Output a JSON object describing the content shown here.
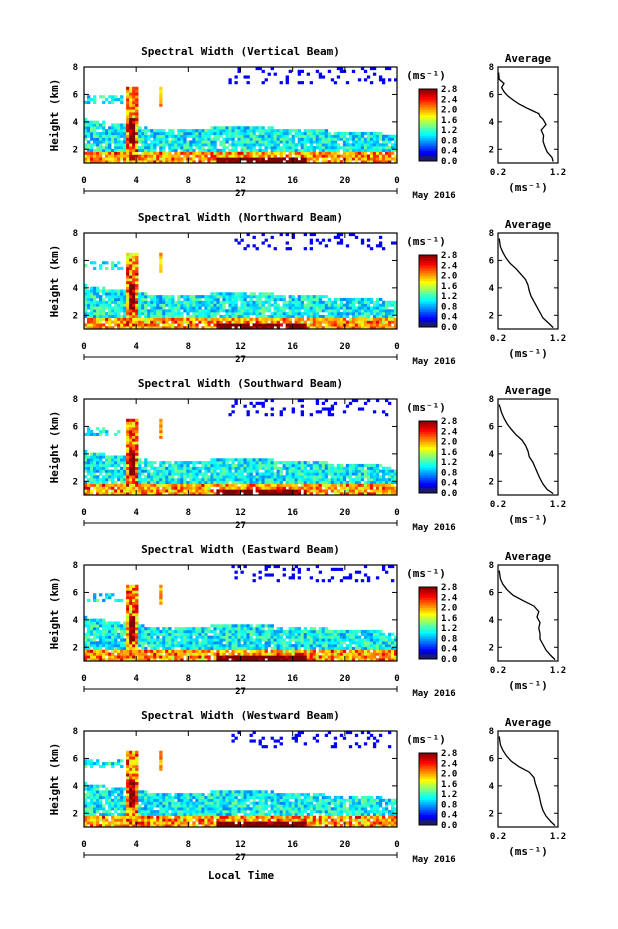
{
  "chart_data": {
    "type": "heatmap",
    "x_label": "Local Time",
    "date_label": "May 2016",
    "day_label": "27",
    "xticks": [
      "0",
      "4",
      "8",
      "12",
      "16",
      "20",
      "0"
    ],
    "y_label": "Height (km)",
    "yticks": [
      "2",
      "4",
      "6",
      "8"
    ],
    "ylim": [
      1,
      8
    ],
    "colorbar": {
      "unit": "(ms⁻¹)",
      "ticks": [
        "0.0",
        "0.4",
        "0.8",
        "1.2",
        "1.6",
        "2.0",
        "2.4",
        "2.8"
      ],
      "range": [
        0,
        2.8
      ]
    },
    "avg_title": "Average",
    "avg_unit": "(ms⁻¹)",
    "avg_xticks": [
      "0.2",
      "1.2"
    ],
    "avg_xlim": [
      0.2,
      1.2
    ],
    "panels": [
      {
        "title": "Spectral Width (Vertical Beam)",
        "avg_profile": [
          [
            1.12,
            1.1
          ],
          [
            1.1,
            1.4
          ],
          [
            1.02,
            1.8
          ],
          [
            0.98,
            2.2
          ],
          [
            0.95,
            2.6
          ],
          [
            0.96,
            3.0
          ],
          [
            0.92,
            3.4
          ],
          [
            1.0,
            3.8
          ],
          [
            0.95,
            4.2
          ],
          [
            0.9,
            4.4
          ],
          [
            0.88,
            4.6
          ],
          [
            0.78,
            4.8
          ],
          [
            0.68,
            5.0
          ],
          [
            0.55,
            5.3
          ],
          [
            0.45,
            5.6
          ],
          [
            0.36,
            5.9
          ],
          [
            0.3,
            6.2
          ],
          [
            0.26,
            6.5
          ],
          [
            0.3,
            6.8
          ],
          [
            0.22,
            7.1
          ],
          [
            0.21,
            7.6
          ]
        ]
      },
      {
        "title": "Spectral Width (Northward Beam)",
        "avg_profile": [
          [
            1.12,
            1.1
          ],
          [
            1.05,
            1.4
          ],
          [
            0.95,
            1.8
          ],
          [
            0.9,
            2.2
          ],
          [
            0.85,
            2.6
          ],
          [
            0.8,
            3.0
          ],
          [
            0.75,
            3.4
          ],
          [
            0.72,
            3.8
          ],
          [
            0.7,
            4.2
          ],
          [
            0.66,
            4.6
          ],
          [
            0.58,
            5.0
          ],
          [
            0.5,
            5.4
          ],
          [
            0.4,
            5.8
          ],
          [
            0.33,
            6.2
          ],
          [
            0.28,
            6.6
          ],
          [
            0.24,
            7.0
          ],
          [
            0.22,
            7.6
          ]
        ]
      },
      {
        "title": "Spectral Width (Southward Beam)",
        "avg_profile": [
          [
            1.12,
            1.1
          ],
          [
            1.02,
            1.4
          ],
          [
            0.95,
            1.8
          ],
          [
            0.9,
            2.2
          ],
          [
            0.86,
            2.6
          ],
          [
            0.82,
            3.0
          ],
          [
            0.78,
            3.4
          ],
          [
            0.72,
            3.8
          ],
          [
            0.7,
            4.2
          ],
          [
            0.66,
            4.6
          ],
          [
            0.6,
            5.0
          ],
          [
            0.5,
            5.4
          ],
          [
            0.42,
            5.8
          ],
          [
            0.35,
            6.2
          ],
          [
            0.3,
            6.6
          ],
          [
            0.26,
            7.0
          ],
          [
            0.22,
            7.6
          ]
        ]
      },
      {
        "title": "Spectral Width (Eastward Beam)",
        "avg_profile": [
          [
            1.15,
            1.1
          ],
          [
            1.08,
            1.4
          ],
          [
            1.0,
            1.8
          ],
          [
            0.95,
            2.2
          ],
          [
            0.9,
            2.6
          ],
          [
            0.9,
            3.0
          ],
          [
            0.88,
            3.4
          ],
          [
            0.9,
            3.8
          ],
          [
            0.85,
            4.2
          ],
          [
            0.88,
            4.6
          ],
          [
            0.8,
            5.0
          ],
          [
            0.62,
            5.4
          ],
          [
            0.45,
            5.8
          ],
          [
            0.35,
            6.2
          ],
          [
            0.28,
            6.6
          ],
          [
            0.24,
            7.0
          ],
          [
            0.22,
            7.6
          ]
        ]
      },
      {
        "title": "Spectral Width (Westward Beam)",
        "avg_profile": [
          [
            1.15,
            1.1
          ],
          [
            1.08,
            1.4
          ],
          [
            1.0,
            1.8
          ],
          [
            0.95,
            2.2
          ],
          [
            0.92,
            2.6
          ],
          [
            0.9,
            3.0
          ],
          [
            0.88,
            3.4
          ],
          [
            0.85,
            3.8
          ],
          [
            0.82,
            4.2
          ],
          [
            0.8,
            4.6
          ],
          [
            0.72,
            5.0
          ],
          [
            0.55,
            5.4
          ],
          [
            0.42,
            5.8
          ],
          [
            0.34,
            6.2
          ],
          [
            0.28,
            6.6
          ],
          [
            0.24,
            7.0
          ],
          [
            0.22,
            7.6
          ]
        ]
      }
    ]
  }
}
